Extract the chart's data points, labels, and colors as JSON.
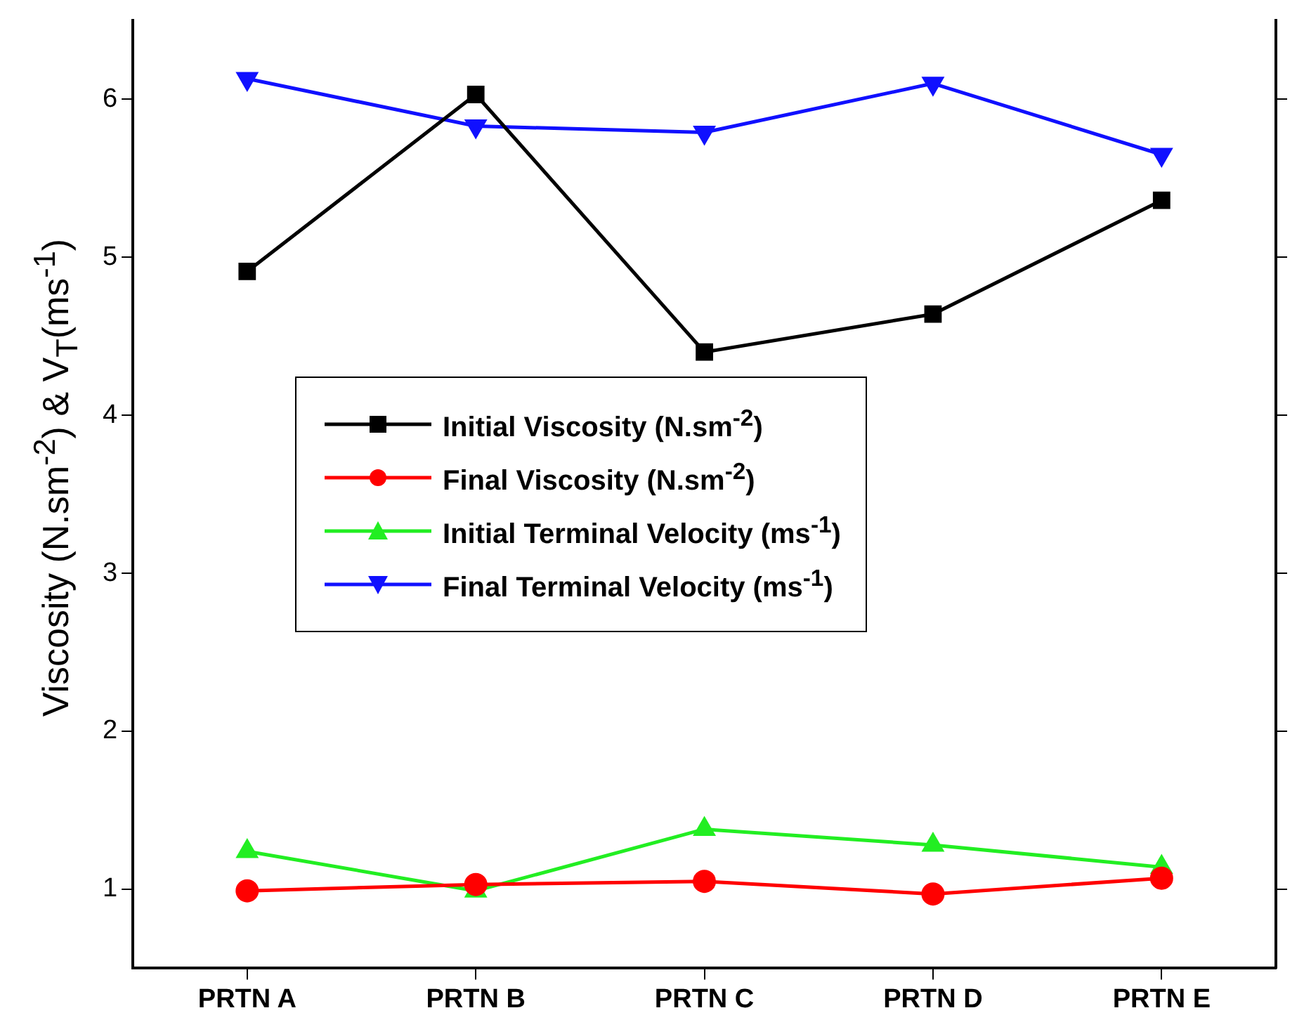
{
  "chart_data": {
    "type": "line",
    "ylabel": "Viscosity (N.sm$^{-2}$) & V$_{T}$(ms$^{-1}$)",
    "categories": [
      "PRTN A",
      "PRTN B",
      "PRTN C",
      "PRTN D",
      "PRTN E"
    ],
    "series": [
      {
        "name": "Initial Viscosity (N.sm$^{-2}$)",
        "color": "#000000",
        "marker": "square",
        "values": [
          4.91,
          6.03,
          4.4,
          4.64,
          5.36
        ]
      },
      {
        "name": "Final Viscosity (N.sm$^{-2}$)",
        "color": "#ff0000",
        "marker": "circle",
        "values": [
          0.99,
          1.03,
          1.05,
          0.97,
          1.07
        ]
      },
      {
        "name": "Initial Terminal Velocity (ms$^{-1}$)",
        "color": "#22ee22",
        "marker": "triangle",
        "values": [
          1.24,
          0.99,
          1.38,
          1.28,
          1.14
        ]
      },
      {
        "name": "Final Terminal Velocity (ms$^{-1}$)",
        "color": "#1010ff",
        "marker": "triangle-down",
        "values": [
          6.13,
          5.83,
          5.79,
          6.1,
          5.65
        ]
      }
    ],
    "ylim": [
      0.5,
      6.5
    ],
    "yticks": [
      1,
      2,
      3,
      4,
      5,
      6
    ],
    "grid": false,
    "legend": "center",
    "line_style": "solid"
  }
}
